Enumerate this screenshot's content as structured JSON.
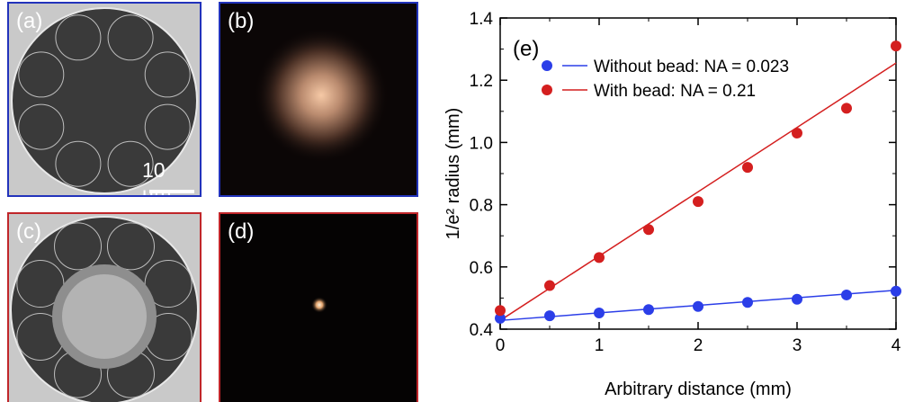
{
  "panels": {
    "a": {
      "label": "(a)",
      "scalebar": "10 µm"
    },
    "b": {
      "label": "(b)"
    },
    "c": {
      "label": "(c)"
    },
    "d": {
      "label": "(d)"
    }
  },
  "colors": {
    "without_bead": "#2b3ee8",
    "with_bead": "#d41f1f",
    "frame_blue": "#2233bb",
    "frame_red": "#c0262a"
  },
  "chart_data": {
    "type": "scatter",
    "panel_label": "(e)",
    "xlabel": "Arbitrary distance (mm)",
    "ylabel": "1/e² radius (mm)",
    "xlim": [
      0,
      4
    ],
    "ylim": [
      0.4,
      1.4
    ],
    "xticks": [
      0,
      1,
      2,
      3,
      4
    ],
    "yticks": [
      0.4,
      0.6,
      0.8,
      1.0,
      1.2,
      1.4
    ],
    "ytick_labels": [
      "0.4",
      "0.6",
      "0.8",
      "1.0",
      "1.2",
      "1.4"
    ],
    "legend_position": "top-left",
    "series": [
      {
        "name": "Without bead: NA = 0.023",
        "color": "#2b3ee8",
        "x": [
          0,
          0.5,
          1,
          1.5,
          2,
          2.5,
          3,
          3.5,
          4
        ],
        "y": [
          0.435,
          0.443,
          0.452,
          0.463,
          0.473,
          0.486,
          0.496,
          0.51,
          0.522
        ],
        "fit": {
          "x": [
            0,
            4
          ],
          "y": [
            0.428,
            0.525
          ]
        }
      },
      {
        "name": "With bead: NA = 0.21",
        "color": "#d41f1f",
        "x": [
          0,
          0.5,
          1,
          1.5,
          2,
          2.5,
          3,
          3.5,
          4
        ],
        "y": [
          0.46,
          0.54,
          0.63,
          0.72,
          0.81,
          0.92,
          1.03,
          1.11,
          1.31
        ],
        "fit": {
          "x": [
            0,
            4
          ],
          "y": [
            0.428,
            1.255
          ]
        }
      }
    ]
  }
}
